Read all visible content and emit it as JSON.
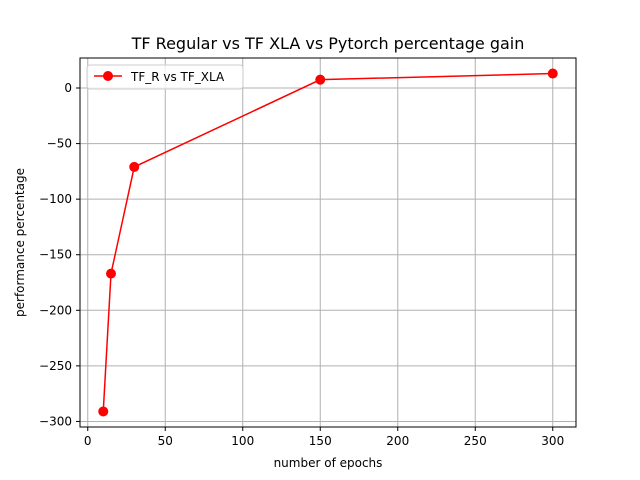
{
  "chart_data": {
    "type": "line",
    "title": "TF Regular vs TF XLA vs Pytorch percentage gain",
    "xlabel": "number of epochs",
    "ylabel": "performance percentage",
    "xlim": [
      -5,
      315
    ],
    "ylim": [
      -305,
      27
    ],
    "xticks": [
      0,
      50,
      100,
      150,
      200,
      250,
      300
    ],
    "yticks": [
      0,
      -50,
      -100,
      -150,
      -200,
      -250,
      -300
    ],
    "xtick_labels": [
      "0",
      "50",
      "100",
      "150",
      "200",
      "250",
      "300"
    ],
    "ytick_labels": [
      "0",
      "−50",
      "−100",
      "−150",
      "−200",
      "−250",
      "−300"
    ],
    "grid": true,
    "legend_position": "top-left",
    "series": [
      {
        "name": "TF_R vs TF_XLA",
        "color": "#ff0000",
        "marker": "circle",
        "x": [
          10,
          15,
          30,
          150,
          300
        ],
        "y": [
          -291,
          -167,
          -71,
          7.5,
          13
        ]
      }
    ]
  }
}
